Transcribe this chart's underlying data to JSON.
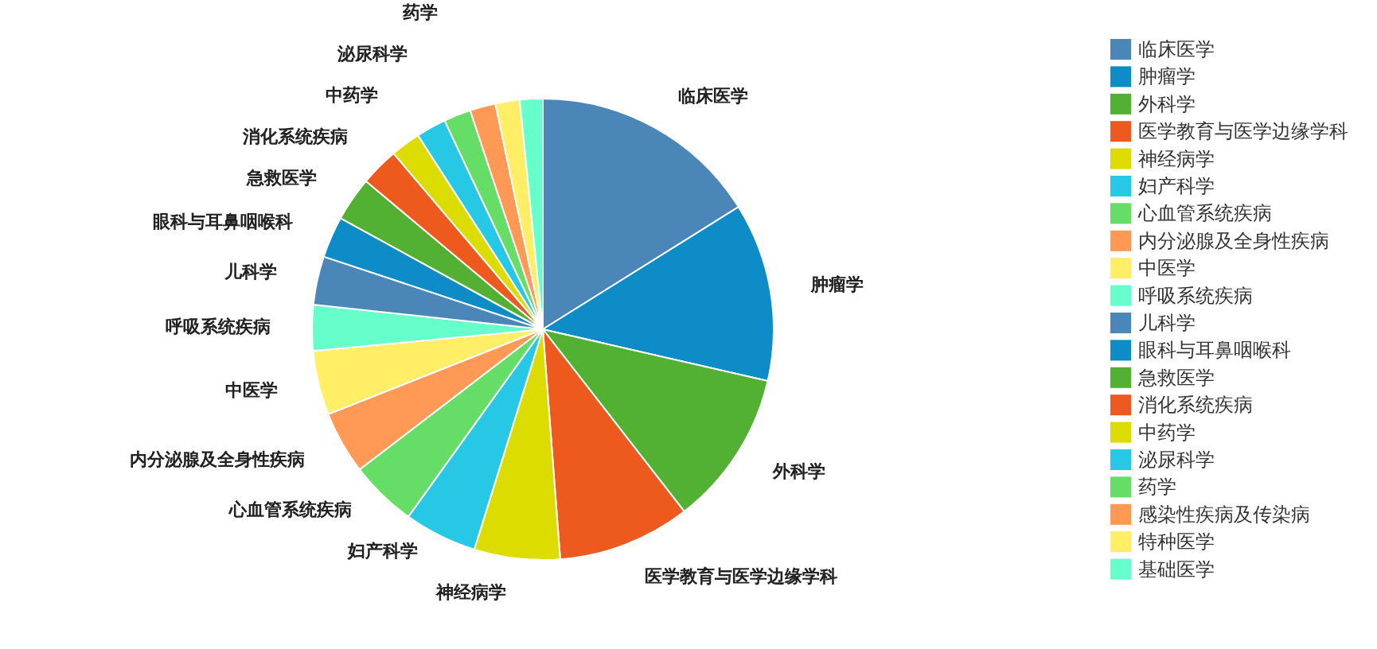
{
  "chart_data": {
    "type": "pie",
    "legend": "right",
    "categories": [
      "临床医学",
      "肿瘤学",
      "外科学",
      "医学教育与医学边缘学科",
      "神经病学",
      "妇产科学",
      "心血管系统疾病",
      "内分泌腺及全身性疾病",
      "中医学",
      "呼吸系统疾病",
      "儿科学",
      "眼科与耳鼻咽喉科",
      "急救医学",
      "消化系统疾病",
      "中药学",
      "泌尿科学",
      "药学",
      "感染性疾病及传染病",
      "特种医学",
      "基础医学"
    ],
    "values": [
      16.1,
      12.5,
      10.9,
      9.3,
      6,
      5.1,
      4.7,
      4.4,
      4.5,
      3.2,
      3.4,
      2.9,
      3.1,
      2.7,
      2.1,
      2.1,
      1.9,
      1.8,
      1.7,
      1.6
    ],
    "colors": [
      "#4a86b8",
      "#0e8cc8",
      "#52b032",
      "#ee5a1e",
      "#dcdc00",
      "#26c8e6",
      "#66dd66",
      "#ff9955",
      "#ffee66",
      "#66ffcc",
      "#4a86b8",
      "#0e8cc8",
      "#52b032",
      "#ee5a1e",
      "#dcdc00",
      "#26c8e6",
      "#66dd66",
      "#ff9955",
      "#ffee66",
      "#66ffcc"
    ]
  }
}
